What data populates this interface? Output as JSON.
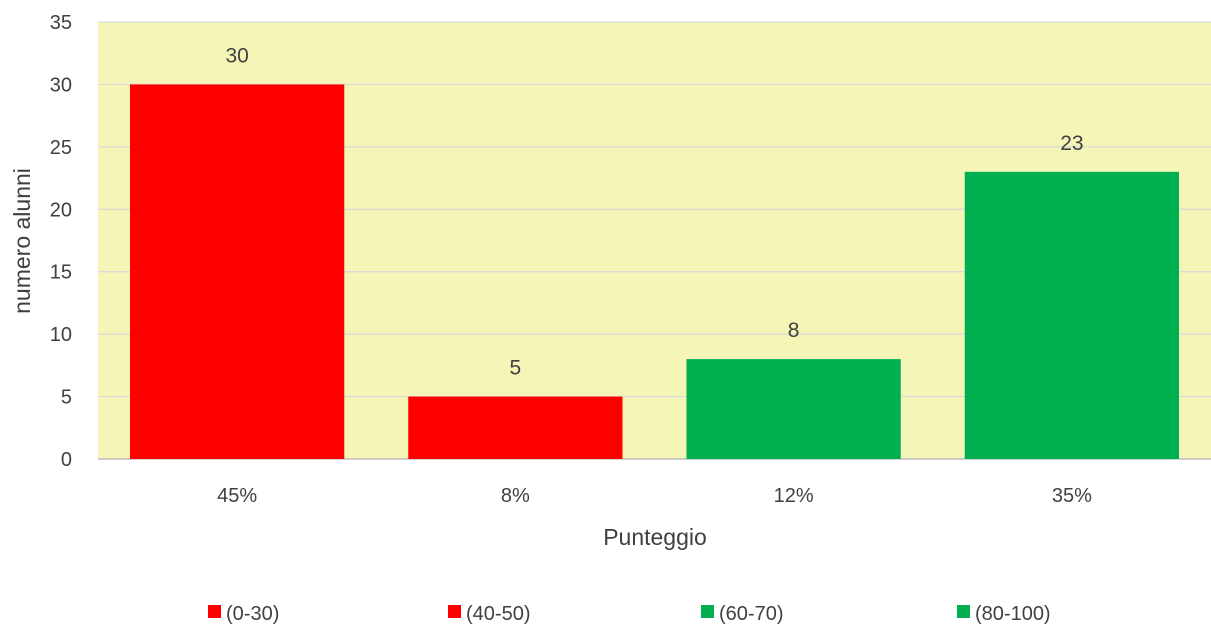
{
  "chart_data": {
    "type": "bar",
    "categories": [
      "45%",
      "8%",
      "12%",
      "35%"
    ],
    "values": [
      30,
      5,
      8,
      23
    ],
    "bar_colors": [
      "#ff0000",
      "#ff0000",
      "#00b050",
      "#00b050"
    ],
    "ylim": [
      0,
      35
    ],
    "yticks": [
      0,
      5,
      10,
      15,
      20,
      25,
      30,
      35
    ],
    "xlabel": "Punteggio",
    "ylabel": "numero alunni",
    "grid": true,
    "plot_background": "#f5f5b8",
    "gridline_color": "#d9d9d9",
    "data_labels": [
      "30",
      "5",
      "8",
      "23"
    ],
    "legend": {
      "placement": "bottom",
      "entries": [
        {
          "label": "(0-30)",
          "color": "#ff0000"
        },
        {
          "label": "(40-50)",
          "color": "#ff0000"
        },
        {
          "label": "(60-70)",
          "color": "#00b050"
        },
        {
          "label": "(80-100)",
          "color": "#00b050"
        }
      ]
    }
  }
}
